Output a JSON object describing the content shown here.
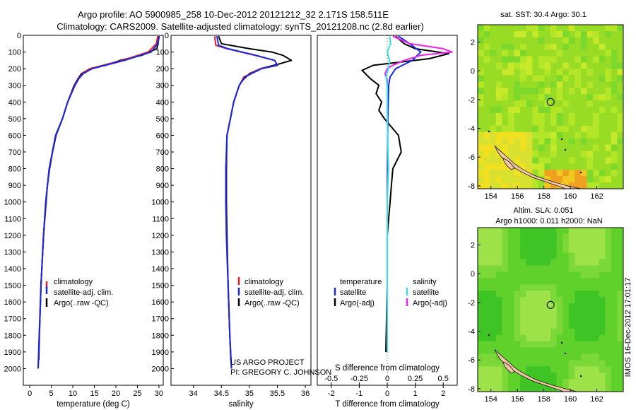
{
  "title": {
    "line1": "Argo profile: AO 5900985_258 10-Dec-2012 20121212_32 2.171S 158.511E",
    "line2": "Climatology: CARS2009. Satellite-adjusted climatology: synTS_20121208.nc (2.8d earlier)"
  },
  "colors": {
    "climatology": "#e0201c",
    "satellite": "#1428e8",
    "argo": "#000000",
    "sat_salinity": "#30e0e8",
    "argo_adj_salinity": "#f020f0"
  },
  "depth_ticks": [
    "0",
    "100",
    "200",
    "300",
    "400",
    "500",
    "600",
    "700",
    "800",
    "900",
    "1000",
    "1100",
    "1200",
    "1300",
    "1400",
    "1500",
    "1600",
    "1700",
    "1800",
    "1900",
    "2000"
  ],
  "chart_data": [
    {
      "type": "line",
      "name": "temperature profile",
      "xlabel": "temperature (deg C)",
      "ylabel": "",
      "xlim": [
        -1.5,
        31
      ],
      "ylim": [
        2100,
        0
      ],
      "x_ticks": [
        "0",
        "5",
        "10",
        "15",
        "20",
        "25",
        "30"
      ],
      "legend": [
        "climatology",
        "satellite-adj. clim.",
        "Argo(..raw -QC)"
      ],
      "series": [
        {
          "name": "climatology",
          "depth": [
            5,
            50,
            100,
            150,
            200,
            230,
            260,
            300,
            400,
            500,
            600,
            800,
            1000,
            1200,
            1500,
            1800,
            2000
          ],
          "values": [
            29.7,
            29.4,
            27.5,
            21.5,
            14.0,
            12.2,
            11.3,
            10.4,
            8.8,
            7.6,
            6.0,
            4.5,
            3.7,
            3.2,
            2.6,
            2.2,
            1.95
          ]
        },
        {
          "name": "satellite-adj. clim.",
          "depth": [
            5,
            50,
            100,
            150,
            200,
            230,
            260,
            300,
            400,
            500,
            600,
            800,
            1000,
            1200,
            1500,
            1800,
            2000
          ],
          "values": [
            30.1,
            29.7,
            28.2,
            22.0,
            14.5,
            12.4,
            11.4,
            10.5,
            8.8,
            7.6,
            6.0,
            4.5,
            3.7,
            3.2,
            2.6,
            2.2,
            1.95
          ]
        },
        {
          "name": "Argo(..raw -QC)",
          "depth": [
            5,
            50,
            80,
            120,
            150,
            180,
            200,
            230,
            260,
            300,
            400,
            500,
            600,
            700,
            800,
            900,
            1000,
            1200,
            1500,
            1800,
            1950
          ],
          "values": [
            30.0,
            29.8,
            29.5,
            26.0,
            21.0,
            17.5,
            14.0,
            12.0,
            11.2,
            10.3,
            8.8,
            7.6,
            6.1,
            5.3,
            4.6,
            4.1,
            3.8,
            3.2,
            2.6,
            2.25,
            2.1
          ]
        }
      ]
    },
    {
      "type": "line",
      "name": "salinity profile",
      "xlabel": "salinity",
      "ylabel": "",
      "xlim": [
        33.6,
        36.1
      ],
      "ylim": [
        2100,
        0
      ],
      "x_ticks": [
        "34",
        "34.5",
        "35",
        "35.5",
        "36"
      ],
      "legend": [
        "climatology",
        "satellite-adj. clim.",
        "Argo(..raw -QC)"
      ],
      "annotation": [
        "US ARGO PROJECT",
        "PI: GREGORY C. JOHNSON"
      ],
      "series": [
        {
          "name": "climatology",
          "depth": [
            5,
            60,
            80,
            120,
            150,
            180,
            200,
            250,
            300,
            400,
            500,
            600,
            800,
            1000,
            1200,
            1500,
            1800,
            2000
          ],
          "values": [
            34.38,
            34.4,
            34.6,
            35.1,
            35.45,
            35.5,
            35.2,
            34.9,
            34.82,
            34.72,
            34.66,
            34.6,
            34.58,
            34.58,
            34.59,
            34.62,
            34.65,
            34.68
          ]
        },
        {
          "name": "satellite-adj. clim.",
          "depth": [
            5,
            60,
            80,
            120,
            150,
            180,
            200,
            250,
            300,
            400,
            500,
            600,
            800,
            1000,
            1200,
            1500,
            1800,
            2000
          ],
          "values": [
            34.42,
            34.45,
            34.62,
            35.12,
            35.45,
            35.5,
            35.22,
            34.92,
            34.82,
            34.72,
            34.66,
            34.6,
            34.58,
            34.58,
            34.59,
            34.62,
            34.65,
            34.68
          ]
        },
        {
          "name": "Argo(..raw -QC)",
          "depth": [
            5,
            50,
            80,
            100,
            120,
            150,
            170,
            200,
            230,
            270,
            300,
            400,
            500,
            600,
            800,
            1000,
            1200,
            1500,
            1800,
            1950
          ],
          "values": [
            34.45,
            34.5,
            35.0,
            35.4,
            35.6,
            35.75,
            35.55,
            35.2,
            35.0,
            34.88,
            34.82,
            34.72,
            34.66,
            34.6,
            34.59,
            34.59,
            34.6,
            34.62,
            34.65,
            34.67
          ]
        }
      ]
    },
    {
      "type": "line",
      "name": "difference from climatology",
      "xlabel": "T difference from climatology",
      "xlabel_top": "S difference from climatology",
      "xlim_T": [
        -2.5,
        2.5
      ],
      "xlim_S": [
        -0.625,
        0.625
      ],
      "ylim": [
        2100,
        0
      ],
      "x_ticks_T": [
        "-2",
        "-1",
        "0",
        "1",
        "2"
      ],
      "x_ticks_S": [
        "-0.5",
        "-0.25",
        "0",
        "0.25",
        "0.5"
      ],
      "legend_temperature": [
        "temperature",
        "satellite",
        "Argo(-adj)"
      ],
      "legend_salinity": [
        "salinity",
        "satellite",
        "Argo(-adj)"
      ],
      "series": [
        {
          "name": "temperature satellite",
          "depth": [
            5,
            50,
            100,
            150,
            200,
            250,
            300,
            500,
            1000,
            1500,
            1900
          ],
          "values": [
            0.4,
            0.8,
            1.2,
            0.9,
            0.3,
            0.1,
            0.05,
            0.02,
            0.0,
            0.0,
            0.0
          ]
        },
        {
          "name": "temperature Argo(-adj)",
          "depth": [
            5,
            50,
            80,
            110,
            140,
            180,
            210,
            260,
            300,
            350,
            400,
            450,
            500,
            600,
            700,
            800,
            900,
            1000,
            1200,
            1500,
            1900
          ],
          "values": [
            0.3,
            0.6,
            1.0,
            2.2,
            1.5,
            -0.5,
            -0.9,
            -0.6,
            -0.3,
            -0.4,
            -0.2,
            -0.3,
            -0.1,
            0.4,
            0.5,
            0.2,
            0.15,
            0.1,
            0.0,
            0.0,
            -0.05
          ]
        },
        {
          "name": "salinity satellite",
          "depth": [
            5,
            50,
            100,
            150,
            200,
            250,
            300,
            500,
            800,
            1000,
            1500,
            1900
          ],
          "values": [
            0.02,
            0.03,
            0.0,
            0.02,
            0.01,
            -0.01,
            0.0,
            0.0,
            0.01,
            0.0,
            0.0,
            0.0
          ]
        },
        {
          "name": "salinity Argo(-adj)",
          "depth": [
            5,
            50,
            80,
            100,
            120,
            150,
            180,
            200,
            230,
            270,
            300
          ],
          "values": [
            0.05,
            0.2,
            0.5,
            0.58,
            0.3,
            0.15,
            0.05,
            0.0,
            -0.02,
            0.0,
            0.0
          ]
        }
      ]
    },
    {
      "type": "heatmap",
      "name": "sea surface temperature map",
      "title": "sat. SST: 30.4  Argo: 30.1",
      "x_ticks": [
        "154",
        "156",
        "158",
        "160",
        "162"
      ],
      "y_ticks": [
        "2",
        "0",
        "-2",
        "-4",
        "-6",
        "-8"
      ],
      "xlim": [
        153,
        164
      ],
      "ylim": [
        -8.2,
        3.2
      ],
      "marker": {
        "lon": 158.511,
        "lat": -2.171
      }
    },
    {
      "type": "heatmap",
      "name": "sea level anomaly map",
      "title": "Altim. SLA: 0.051",
      "subtitle": "Argo h1000: 0.011  h2000: NaN",
      "x_ticks": [
        "154",
        "156",
        "158",
        "160",
        "162"
      ],
      "y_ticks": [
        "2",
        "0",
        "-2",
        "-4",
        "-6",
        "-8"
      ],
      "xlim": [
        153,
        164
      ],
      "ylim": [
        -8.2,
        3.2
      ],
      "marker": {
        "lon": 158.511,
        "lat": -2.171
      }
    }
  ],
  "credit": "IMOS 16-Dec-2012 17:01:17"
}
